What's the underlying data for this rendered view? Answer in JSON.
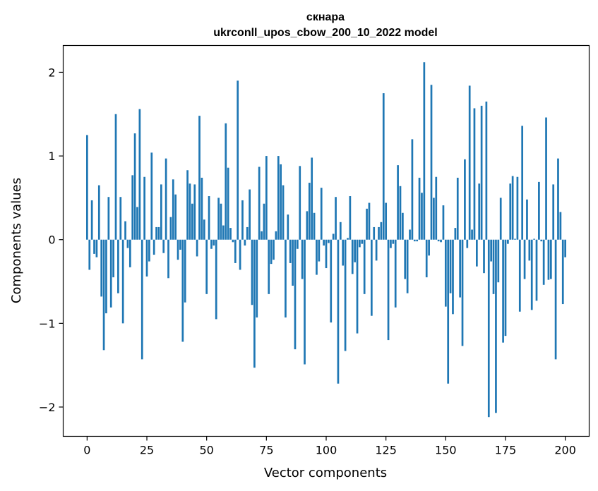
{
  "chart_data": {
    "type": "bar",
    "title": "скнара",
    "subtitle": "ukrconll_upos_cbow_200_10_2022 model",
    "xlabel": "Vector components",
    "ylabel": "Components values",
    "xlim": [
      -10,
      210
    ],
    "ylim": [
      -2.35,
      2.32
    ],
    "xticks": [
      0,
      25,
      50,
      75,
      100,
      125,
      150,
      175,
      200
    ],
    "yticks": [
      -2,
      -1,
      0,
      1,
      2
    ],
    "xtick_labels": [
      "0",
      "25",
      "50",
      "75",
      "100",
      "125",
      "150",
      "175",
      "200"
    ],
    "ytick_labels": [
      "−2",
      "−1",
      "0",
      "1",
      "2"
    ],
    "bar_color": "#1f77b4",
    "grid": false,
    "values": [
      1.25,
      -0.36,
      0.47,
      -0.17,
      -0.21,
      0.65,
      -0.68,
      -1.32,
      -0.88,
      0.51,
      -0.81,
      -0.45,
      1.5,
      -0.64,
      0.51,
      -1.0,
      0.22,
      -0.1,
      -0.33,
      0.77,
      1.27,
      0.39,
      1.56,
      -1.43,
      0.75,
      -0.44,
      -0.26,
      1.04,
      -0.18,
      0.15,
      0.15,
      0.66,
      -0.16,
      0.97,
      -0.46,
      0.27,
      0.72,
      0.54,
      -0.24,
      -0.12,
      -1.22,
      -0.75,
      0.83,
      0.67,
      0.43,
      0.66,
      -0.2,
      1.48,
      0.74,
      0.24,
      -0.65,
      0.52,
      -0.11,
      -0.07,
      -0.95,
      0.5,
      0.43,
      0.17,
      1.39,
      0.86,
      0.14,
      -0.03,
      -0.28,
      1.9,
      -0.36,
      0.47,
      -0.07,
      0.15,
      0.6,
      -0.78,
      -1.53,
      -0.93,
      0.87,
      0.1,
      0.43,
      1.0,
      -0.65,
      -0.29,
      -0.24,
      0.1,
      1.0,
      0.9,
      0.65,
      -0.93,
      0.3,
      -0.28,
      -0.55,
      -1.31,
      -0.11,
      0.88,
      -0.47,
      -1.49,
      0.34,
      0.68,
      0.98,
      0.32,
      -0.42,
      -0.26,
      0.62,
      -0.07,
      -0.34,
      -0.04,
      -0.99,
      0.07,
      0.51,
      -1.72,
      0.21,
      -0.31,
      -1.33,
      0.02,
      0.52,
      -0.41,
      -0.27,
      -1.12,
      -0.09,
      -0.05,
      -0.65,
      0.37,
      0.44,
      -0.91,
      0.15,
      -0.25,
      0.15,
      0.21,
      1.75,
      0.44,
      -1.2,
      -0.1,
      -0.05,
      -0.81,
      0.89,
      0.64,
      0.32,
      -0.47,
      -0.64,
      0.12,
      1.2,
      -0.02,
      -0.02,
      0.74,
      0.56,
      2.12,
      -0.45,
      -0.19,
      1.85,
      0.5,
      0.75,
      -0.02,
      -0.03,
      0.41,
      -0.8,
      -1.72,
      -0.64,
      -0.89,
      0.14,
      0.74,
      -0.69,
      -1.27,
      0.96,
      -0.1,
      1.84,
      0.12,
      1.57,
      -0.32,
      0.67,
      1.6,
      -0.4,
      1.65,
      -2.12,
      -0.26,
      -0.65,
      -2.07,
      -0.51,
      0.5,
      -1.23,
      -1.15,
      -0.05,
      0.67,
      0.76,
      0.01,
      0.75,
      -0.86,
      1.36,
      -0.47,
      0.48,
      -0.25,
      -0.84,
      0.01,
      -0.73,
      0.69,
      -0.02,
      -0.54,
      1.46,
      -0.48,
      -0.47,
      0.66,
      -1.43,
      0.97,
      0.33,
      -0.77,
      -0.21
    ]
  }
}
